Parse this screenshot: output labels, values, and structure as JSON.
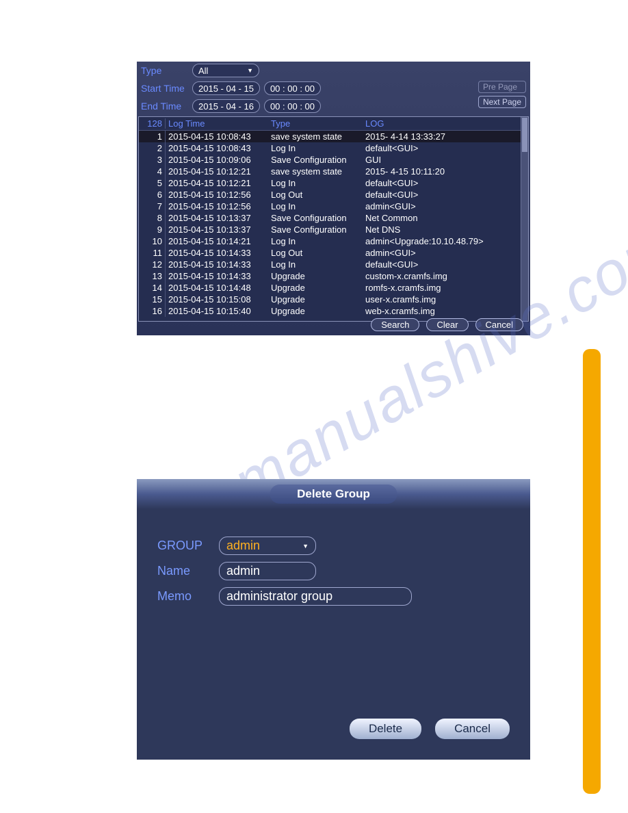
{
  "panel1": {
    "filters": {
      "type_label": "Type",
      "type_value": "All",
      "start_label": "Start Time",
      "start_date": "2015 - 04 - 15",
      "start_time": "00 : 00 : 00",
      "end_label": "End Time",
      "end_date": "2015 - 04 - 16",
      "end_time": "00 : 00 : 00"
    },
    "nav": {
      "pre": "Pre Page",
      "next": "Next Page"
    },
    "table": {
      "count": "128",
      "headers": {
        "time": "Log Time",
        "type": "Type",
        "log": "LOG"
      },
      "rows": [
        {
          "n": "1",
          "time": "2015-04-15 10:08:43",
          "type": "save system state",
          "log": "2015- 4-14 13:33:27",
          "selected": true
        },
        {
          "n": "2",
          "time": "2015-04-15 10:08:43",
          "type": "Log In",
          "log": "default<GUI>"
        },
        {
          "n": "3",
          "time": "2015-04-15 10:09:06",
          "type": "Save Configuration",
          "log": "GUI"
        },
        {
          "n": "4",
          "time": "2015-04-15 10:12:21",
          "type": "save system state",
          "log": "2015- 4-15 10:11:20"
        },
        {
          "n": "5",
          "time": "2015-04-15 10:12:21",
          "type": "Log In",
          "log": "default<GUI>"
        },
        {
          "n": "6",
          "time": "2015-04-15 10:12:56",
          "type": "Log Out",
          "log": "default<GUI>"
        },
        {
          "n": "7",
          "time": "2015-04-15 10:12:56",
          "type": "Log In",
          "log": "admin<GUI>"
        },
        {
          "n": "8",
          "time": "2015-04-15 10:13:37",
          "type": "Save Configuration",
          "log": "Net Common"
        },
        {
          "n": "9",
          "time": "2015-04-15 10:13:37",
          "type": "Save Configuration",
          "log": "Net DNS"
        },
        {
          "n": "10",
          "time": "2015-04-15 10:14:21",
          "type": "Log In",
          "log": "admin<Upgrade:10.10.48.79>"
        },
        {
          "n": "11",
          "time": "2015-04-15 10:14:33",
          "type": "Log Out",
          "log": "admin<GUI>"
        },
        {
          "n": "12",
          "time": "2015-04-15 10:14:33",
          "type": "Log In",
          "log": "default<GUI>"
        },
        {
          "n": "13",
          "time": "2015-04-15 10:14:33",
          "type": "Upgrade",
          "log": "custom-x.cramfs.img"
        },
        {
          "n": "14",
          "time": "2015-04-15 10:14:48",
          "type": "Upgrade",
          "log": "romfs-x.cramfs.img"
        },
        {
          "n": "15",
          "time": "2015-04-15 10:15:08",
          "type": "Upgrade",
          "log": "user-x.cramfs.img"
        },
        {
          "n": "16",
          "time": "2015-04-15 10:15:40",
          "type": "Upgrade",
          "log": "web-x.cramfs.img"
        }
      ]
    },
    "actions": {
      "search": "Search",
      "clear": "Clear",
      "cancel": "Cancel"
    }
  },
  "panel2": {
    "title": "Delete Group",
    "group_label": "GROUP",
    "group_value": "admin",
    "name_label": "Name",
    "name_value": "admin",
    "memo_label": "Memo",
    "memo_value": "administrator group",
    "delete": "Delete",
    "cancel": "Cancel"
  },
  "watermark": "manualshive.com",
  "colors": {
    "panel_bg": "#2e385a",
    "accent": "#6a8aff",
    "highlight": "#ffb020",
    "yellow_bar": "#f5a800"
  }
}
